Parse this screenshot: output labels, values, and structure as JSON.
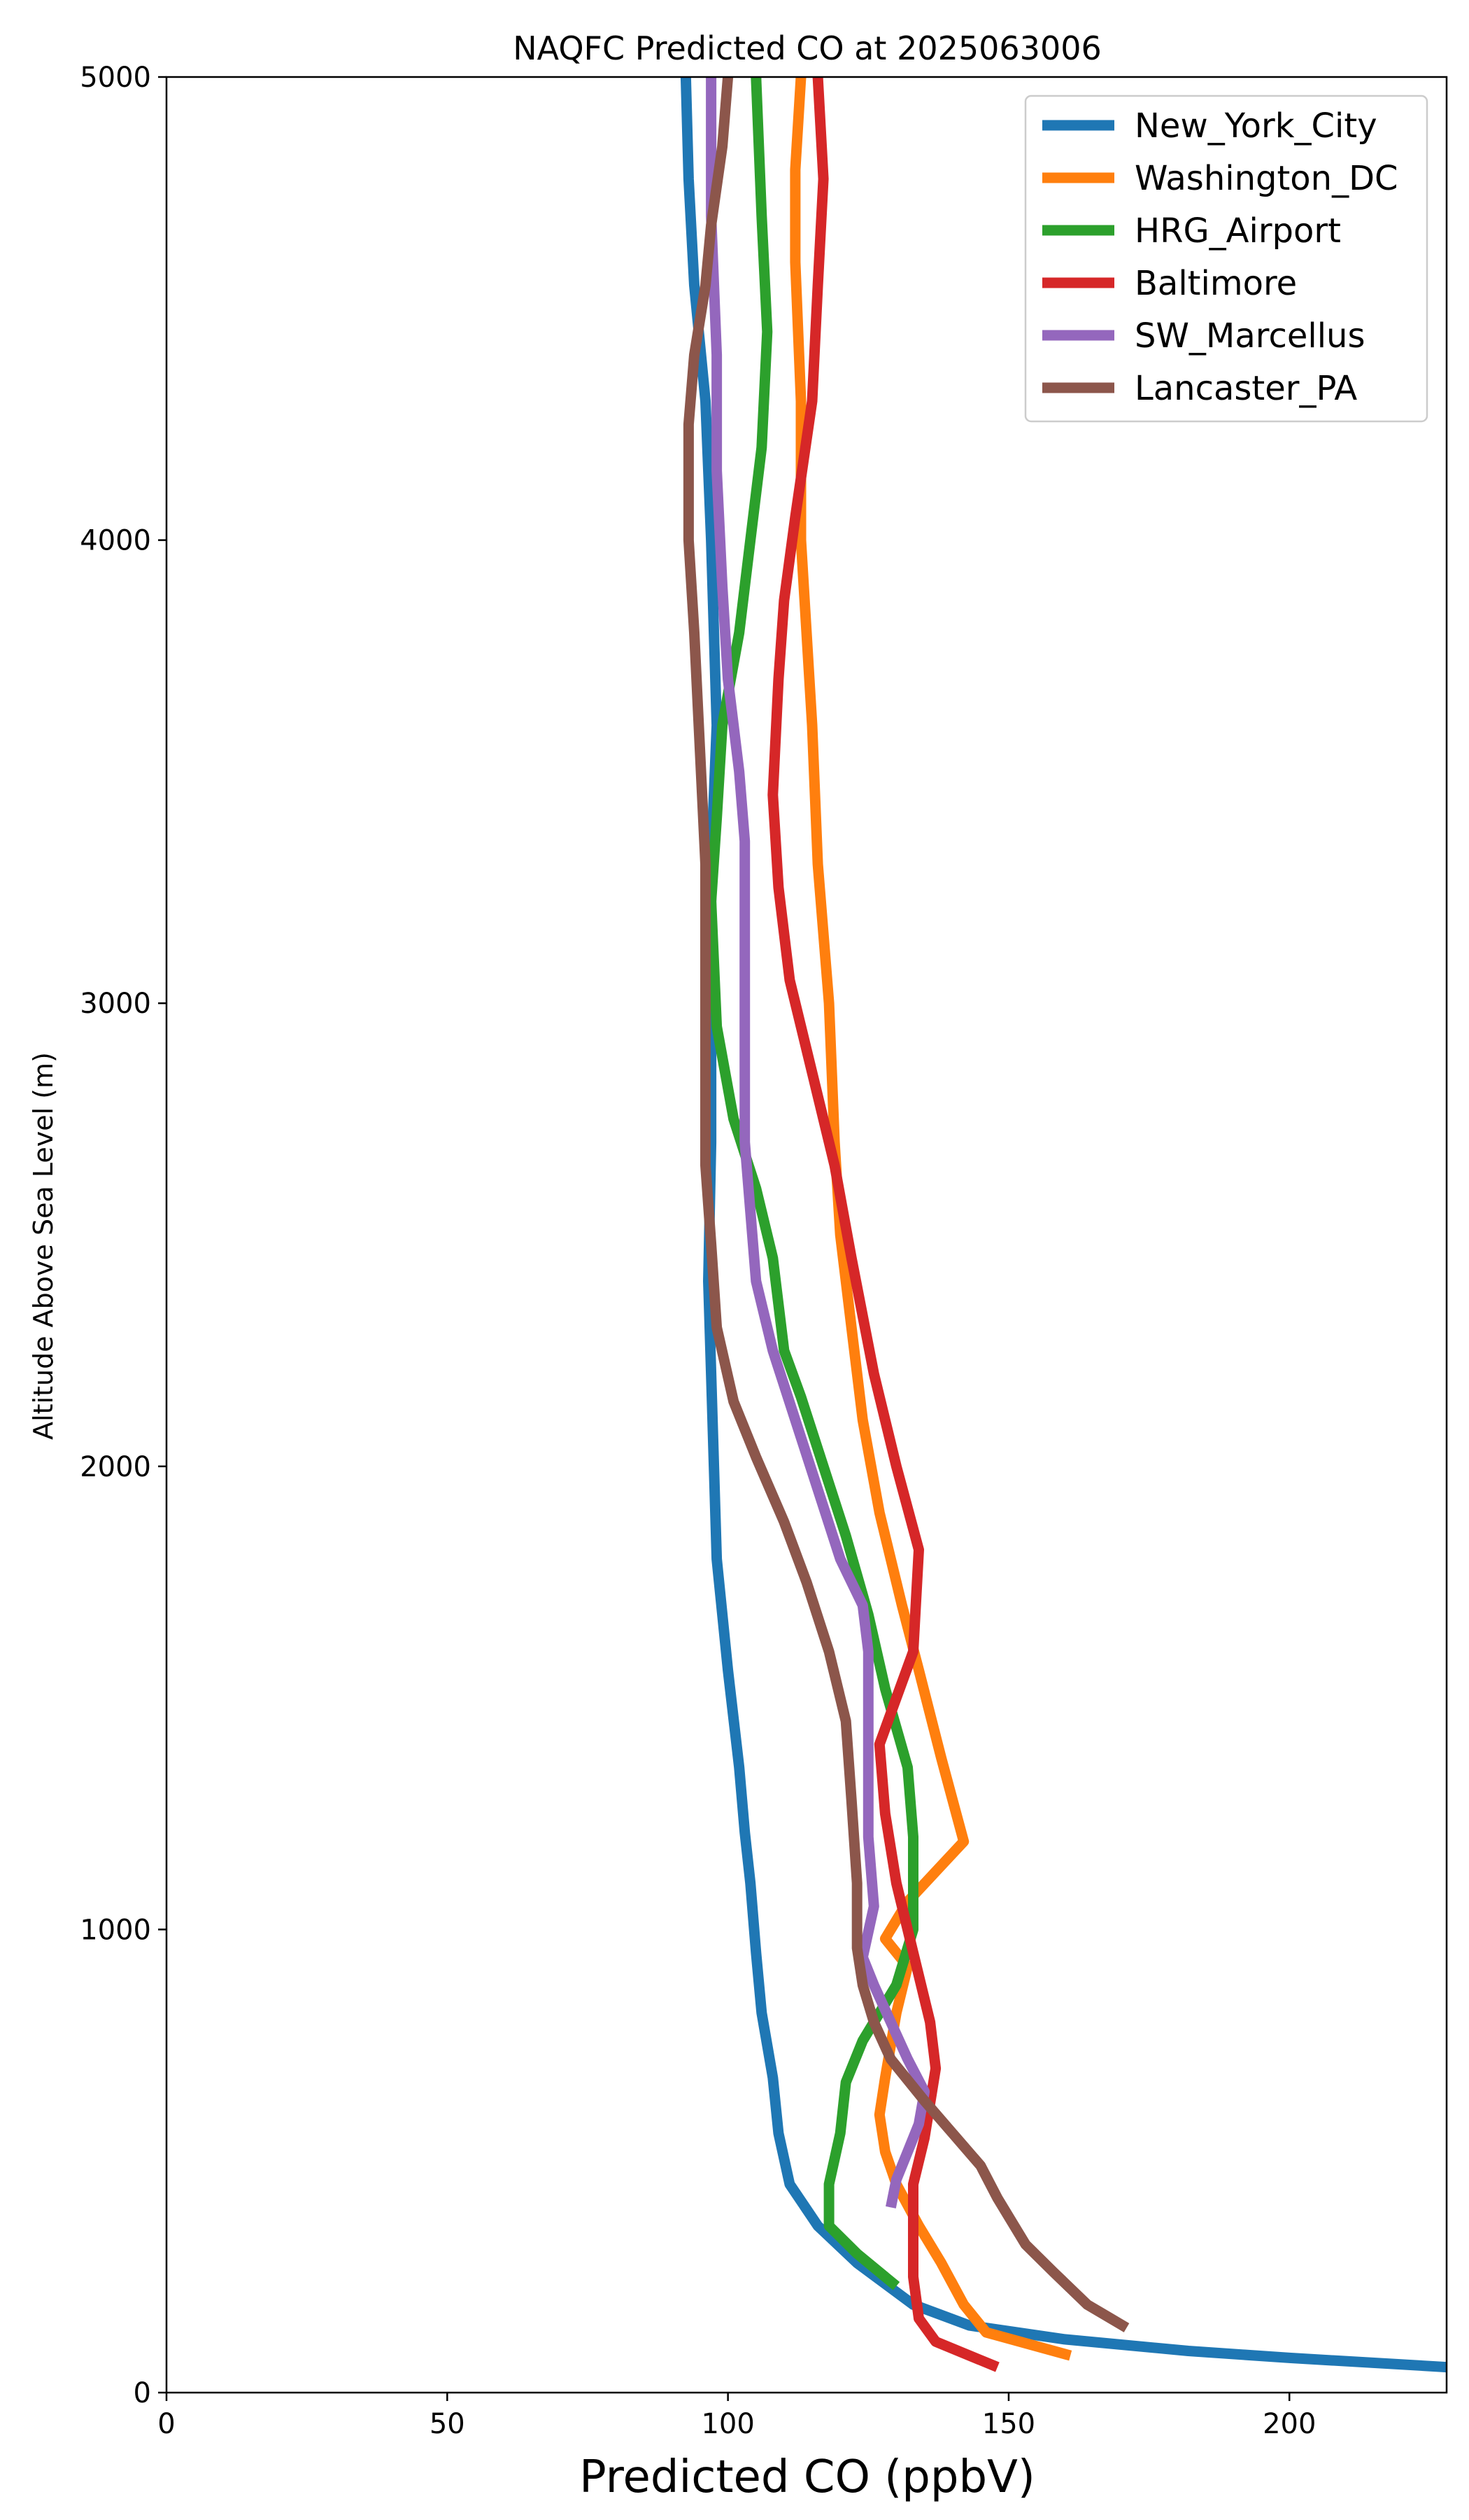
{
  "chart_data": {
    "type": "line",
    "title": "NAQFC Predicted CO at 2025063006",
    "xlabel": "Predicted CO (ppbV)",
    "ylabel": "Altitude Above Sea Level (m)",
    "xlim": [
      0,
      228
    ],
    "ylim": [
      0,
      5000
    ],
    "xticks": [
      0,
      50,
      100,
      150,
      200
    ],
    "yticks": [
      0,
      1000,
      2000,
      3000,
      4000,
      5000
    ],
    "grid": false,
    "legend_position": "top-right",
    "series": [
      {
        "name": "New_York_City",
        "color": "#1f77b4",
        "points": [
          [
            228,
            55
          ],
          [
            200,
            75
          ],
          [
            182,
            90
          ],
          [
            160,
            115
          ],
          [
            143,
            145
          ],
          [
            133,
            190
          ],
          [
            123,
            280
          ],
          [
            116,
            360
          ],
          [
            111,
            450
          ],
          [
            109,
            560
          ],
          [
            108,
            680
          ],
          [
            106,
            820
          ],
          [
            105,
            950
          ],
          [
            104,
            1100
          ],
          [
            103,
            1210
          ],
          [
            102,
            1350
          ],
          [
            100,
            1560
          ],
          [
            98,
            1800
          ],
          [
            97.5,
            2000
          ],
          [
            97,
            2200
          ],
          [
            96.5,
            2400
          ],
          [
            97,
            2700
          ],
          [
            97,
            3000
          ],
          [
            97,
            3300
          ],
          [
            98,
            3600
          ],
          [
            97,
            4000
          ],
          [
            96,
            4300
          ],
          [
            94,
            4550
          ],
          [
            93,
            4780
          ],
          [
            92.5,
            5000
          ]
        ]
      },
      {
        "name": "Washington_DC",
        "color": "#ff7f0e",
        "points": [
          [
            161,
            80
          ],
          [
            146,
            130
          ],
          [
            142,
            190
          ],
          [
            138,
            280
          ],
          [
            134,
            360
          ],
          [
            130,
            450
          ],
          [
            128,
            520
          ],
          [
            127,
            600
          ],
          [
            128,
            680
          ],
          [
            130,
            820
          ],
          [
            132,
            920
          ],
          [
            128,
            980
          ],
          [
            132,
            1060
          ],
          [
            142,
            1190
          ],
          [
            138,
            1370
          ],
          [
            134,
            1560
          ],
          [
            131,
            1700
          ],
          [
            127,
            1900
          ],
          [
            124,
            2100
          ],
          [
            122,
            2300
          ],
          [
            120,
            2500
          ],
          [
            119,
            2700
          ],
          [
            118,
            3000
          ],
          [
            116,
            3300
          ],
          [
            115,
            3600
          ],
          [
            113,
            4000
          ],
          [
            113,
            4300
          ],
          [
            112,
            4600
          ],
          [
            112,
            4800
          ],
          [
            113,
            5000
          ]
        ]
      },
      {
        "name": "HRG_Airport",
        "color": "#2ca02c",
        "points": [
          [
            130,
            230
          ],
          [
            123,
            300
          ],
          [
            118,
            360
          ],
          [
            118,
            450
          ],
          [
            120,
            560
          ],
          [
            121,
            670
          ],
          [
            124,
            760
          ],
          [
            130,
            880
          ],
          [
            133,
            1000
          ],
          [
            133,
            1200
          ],
          [
            132,
            1350
          ],
          [
            128,
            1520
          ],
          [
            125,
            1680
          ],
          [
            121,
            1850
          ],
          [
            117,
            2000
          ],
          [
            113,
            2150
          ],
          [
            110,
            2250
          ],
          [
            108,
            2450
          ],
          [
            105,
            2600
          ],
          [
            101,
            2750
          ],
          [
            98,
            2950
          ],
          [
            97,
            3220
          ],
          [
            98,
            3400
          ],
          [
            99,
            3600
          ],
          [
            102,
            3800
          ],
          [
            104,
            4000
          ],
          [
            106,
            4200
          ],
          [
            107,
            4450
          ],
          [
            106,
            4700
          ],
          [
            105,
            5000
          ]
        ]
      },
      {
        "name": "Baltimore",
        "color": "#d62728",
        "points": [
          [
            148,
            55
          ],
          [
            137,
            110
          ],
          [
            134,
            160
          ],
          [
            133,
            250
          ],
          [
            133,
            350
          ],
          [
            133,
            450
          ],
          [
            135,
            550
          ],
          [
            137,
            700
          ],
          [
            136,
            800
          ],
          [
            133,
            950
          ],
          [
            130,
            1100
          ],
          [
            128,
            1250
          ],
          [
            127,
            1400
          ],
          [
            130,
            1500
          ],
          [
            133,
            1600
          ],
          [
            134,
            1820
          ],
          [
            130,
            2000
          ],
          [
            126,
            2200
          ],
          [
            122,
            2450
          ],
          [
            119,
            2650
          ],
          [
            115,
            2850
          ],
          [
            111,
            3050
          ],
          [
            109,
            3250
          ],
          [
            108,
            3450
          ],
          [
            109,
            3700
          ],
          [
            110,
            3870
          ],
          [
            112,
            4050
          ],
          [
            115,
            4300
          ],
          [
            116,
            4550
          ],
          [
            117,
            4780
          ],
          [
            116,
            5000
          ]
        ]
      },
      {
        "name": "SW_Marcellus",
        "color": "#9467bd",
        "points": [
          [
            129,
            400
          ],
          [
            130,
            460
          ],
          [
            132,
            520
          ],
          [
            134,
            580
          ],
          [
            135,
            650
          ],
          [
            132,
            720
          ],
          [
            129,
            800
          ],
          [
            126,
            880
          ],
          [
            124,
            940
          ],
          [
            126,
            1050
          ],
          [
            125,
            1200
          ],
          [
            125,
            1400
          ],
          [
            125,
            1600
          ],
          [
            124,
            1700
          ],
          [
            120,
            1800
          ],
          [
            116,
            1950
          ],
          [
            112,
            2100
          ],
          [
            108,
            2250
          ],
          [
            105,
            2400
          ],
          [
            104,
            2550
          ],
          [
            103,
            2700
          ],
          [
            103,
            2900
          ],
          [
            103,
            3100
          ],
          [
            103,
            3350
          ],
          [
            102,
            3500
          ],
          [
            100,
            3700
          ],
          [
            99,
            3900
          ],
          [
            98,
            4150
          ],
          [
            98,
            4400
          ],
          [
            97,
            4700
          ],
          [
            97,
            5000
          ]
        ]
      },
      {
        "name": "Lancaster_PA",
        "color": "#8c564b",
        "points": [
          [
            171,
            140
          ],
          [
            164,
            190
          ],
          [
            158,
            260
          ],
          [
            153,
            320
          ],
          [
            148,
            420
          ],
          [
            145,
            490
          ],
          [
            140,
            560
          ],
          [
            135,
            630
          ],
          [
            129,
            720
          ],
          [
            126,
            800
          ],
          [
            124,
            880
          ],
          [
            123,
            960
          ],
          [
            123,
            1100
          ],
          [
            122,
            1280
          ],
          [
            121,
            1450
          ],
          [
            118,
            1600
          ],
          [
            114,
            1750
          ],
          [
            110,
            1880
          ],
          [
            105,
            2020
          ],
          [
            101,
            2140
          ],
          [
            98,
            2300
          ],
          [
            97,
            2480
          ],
          [
            96,
            2650
          ],
          [
            96,
            2900
          ],
          [
            96,
            3100
          ],
          [
            96,
            3300
          ],
          [
            95,
            3550
          ],
          [
            94,
            3800
          ],
          [
            93,
            4000
          ],
          [
            93,
            4250
          ],
          [
            94,
            4400
          ],
          [
            96,
            4550
          ],
          [
            97,
            4680
          ],
          [
            99,
            4850
          ],
          [
            100,
            5000
          ]
        ]
      }
    ]
  }
}
